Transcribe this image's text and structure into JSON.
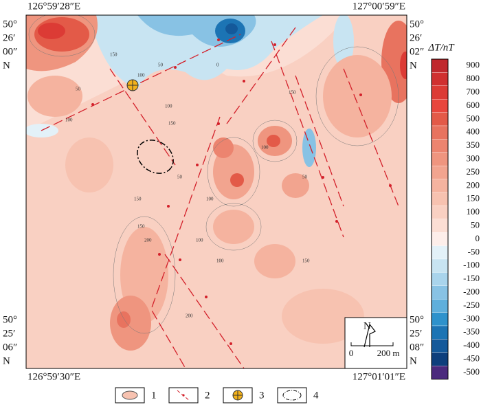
{
  "map": {
    "coords": {
      "top_left": "126°59′28″E",
      "top_right": "127°00′59″E",
      "bottom_left": "126°59′30″E",
      "bottom_right": "127°01′01″E",
      "left_top": [
        "50°",
        "26′",
        "00″",
        "N"
      ],
      "right_top": [
        "50°",
        "26′",
        "02″",
        "N"
      ],
      "left_bottom": [
        "50°",
        "25′",
        "06″",
        "N"
      ],
      "right_bottom": [
        "50°",
        "25′",
        "08″",
        "N"
      ]
    },
    "contour_labels": [
      "50",
      "100",
      "150",
      "100",
      "50",
      "0",
      "100",
      "150",
      "50",
      "100",
      "150",
      "200",
      "100",
      "150",
      "100",
      "50",
      "150",
      "200",
      "100",
      "150"
    ],
    "north": "N",
    "scale": {
      "zero": "0",
      "length": "200 m"
    }
  },
  "colorbar": {
    "title": "ΔT/nT",
    "levels": [
      {
        "value": 900,
        "color": "#c0282d"
      },
      {
        "value": 800,
        "color": "#d03030"
      },
      {
        "value": 700,
        "color": "#dc3b35"
      },
      {
        "value": 600,
        "color": "#e8463d"
      },
      {
        "value": 500,
        "color": "#e35a48"
      },
      {
        "value": 400,
        "color": "#e8735f"
      },
      {
        "value": 350,
        "color": "#ec846f"
      },
      {
        "value": 300,
        "color": "#ef957f"
      },
      {
        "value": 250,
        "color": "#f2a48f"
      },
      {
        "value": 200,
        "color": "#f5b39f"
      },
      {
        "value": 150,
        "color": "#f7c2b0"
      },
      {
        "value": 100,
        "color": "#f9d0c2"
      },
      {
        "value": 50,
        "color": "#fbded4"
      },
      {
        "value": 0,
        "color": "#fdeeea"
      },
      {
        "value": -50,
        "color": "#e3f1f8"
      },
      {
        "value": -100,
        "color": "#c8e4f2"
      },
      {
        "value": -150,
        "color": "#a9d4ec"
      },
      {
        "value": -200,
        "color": "#88c2e4"
      },
      {
        "value": -250,
        "color": "#5fafdc"
      },
      {
        "value": -300,
        "color": "#2e92cc"
      },
      {
        "value": -350,
        "color": "#1c74b4"
      },
      {
        "value": -400,
        "color": "#14599a"
      },
      {
        "value": -450,
        "color": "#0e3f7c"
      },
      {
        "value": -500,
        "color": "#4b2a7d"
      }
    ]
  },
  "legend": [
    "1",
    "2",
    "3",
    "4"
  ]
}
